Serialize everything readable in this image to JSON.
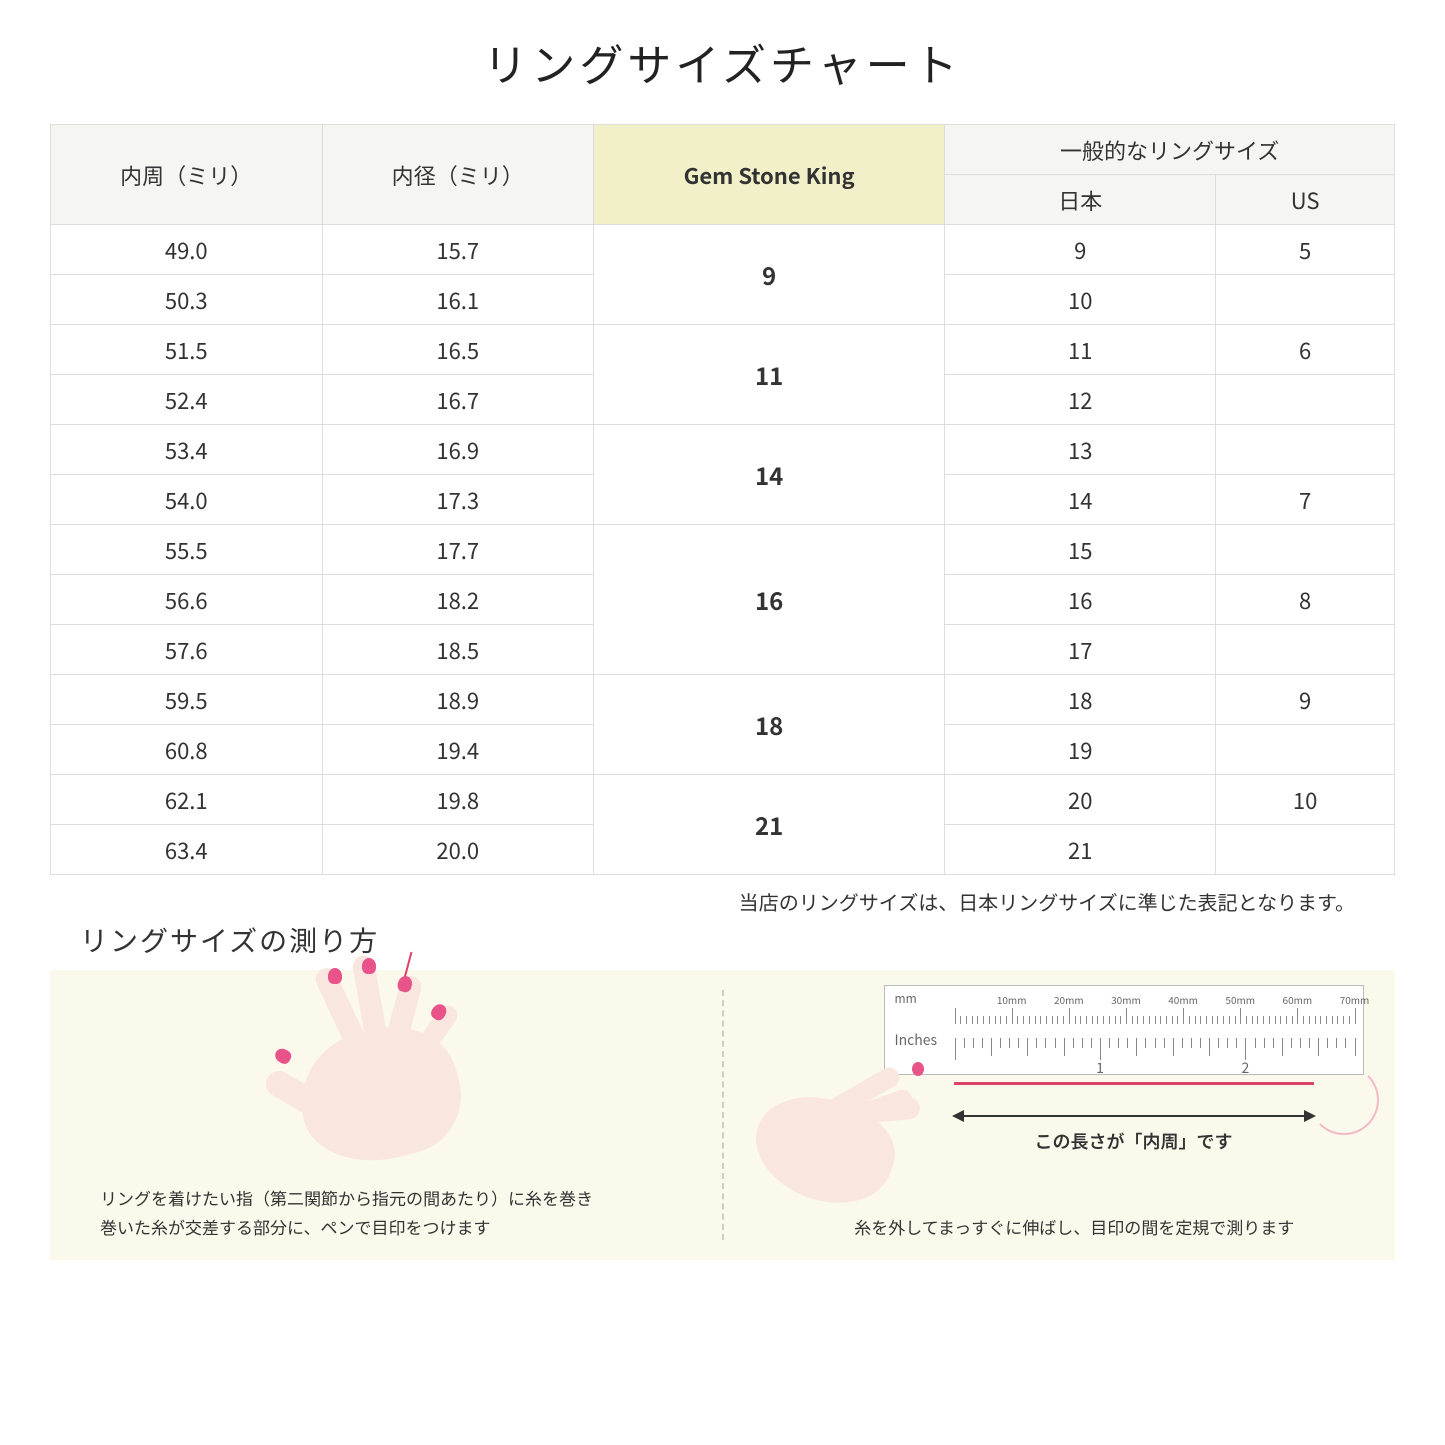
{
  "title": "リングサイズチャート",
  "table": {
    "headers": {
      "circumference": "内周（ミリ）",
      "diameter": "内径（ミリ）",
      "gsk": "Gem Stone King",
      "general": "一般的なリングサイズ",
      "jp": "日本",
      "us": "US"
    },
    "groups": [
      {
        "gsk": "9",
        "rows": [
          {
            "c": "49.0",
            "d": "15.7",
            "jp": "9",
            "us": "5"
          },
          {
            "c": "50.3",
            "d": "16.1",
            "jp": "10",
            "us": ""
          }
        ]
      },
      {
        "gsk": "11",
        "rows": [
          {
            "c": "51.5",
            "d": "16.5",
            "jp": "11",
            "us": "6"
          },
          {
            "c": "52.4",
            "d": "16.7",
            "jp": "12",
            "us": ""
          }
        ]
      },
      {
        "gsk": "14",
        "rows": [
          {
            "c": "53.4",
            "d": "16.9",
            "jp": "13",
            "us": ""
          },
          {
            "c": "54.0",
            "d": "17.3",
            "jp": "14",
            "us": "7"
          }
        ]
      },
      {
        "gsk": "16",
        "rows": [
          {
            "c": "55.5",
            "d": "17.7",
            "jp": "15",
            "us": ""
          },
          {
            "c": "56.6",
            "d": "18.2",
            "jp": "16",
            "us": "8"
          },
          {
            "c": "57.6",
            "d": "18.5",
            "jp": "17",
            "us": ""
          }
        ]
      },
      {
        "gsk": "18",
        "rows": [
          {
            "c": "59.5",
            "d": "18.9",
            "jp": "18",
            "us": "9"
          },
          {
            "c": "60.8",
            "d": "19.4",
            "jp": "19",
            "us": ""
          }
        ]
      },
      {
        "gsk": "21",
        "rows": [
          {
            "c": "62.1",
            "d": "19.8",
            "jp": "20",
            "us": "10"
          },
          {
            "c": "63.4",
            "d": "20.0",
            "jp": "21",
            "us": ""
          }
        ]
      }
    ]
  },
  "note": "当店のリングサイズは、日本リングサイズに準じた表記となります。",
  "howto": {
    "title": "リングサイズの測り方",
    "left_caption": "リングを着けたい指（第二関節から指元の間あたり）に糸を巻き\n巻いた糸が交差する部分に、ペンで目印をつけます",
    "right_caption": "糸を外してまっすぐに伸ばし、目印の間を定規で測ります",
    "arrow_label": "この長さが「内周」です",
    "ruler": {
      "mm_unit": "mm",
      "in_unit": "Inches",
      "mm_ticks": [
        "10mm",
        "20mm",
        "30mm",
        "40mm",
        "50mm",
        "60mm",
        "70mm"
      ],
      "in_ticks": [
        "1",
        "2"
      ]
    }
  },
  "colors": {
    "header_bg": "#f5f5f2",
    "highlight_bg": "#f1f0c9",
    "border": "#dddddd",
    "howto_bg": "#fbf9eb",
    "skin": "#f9e6de",
    "nail": "#e8548a",
    "thread": "#d9436a",
    "thread_light": "#f3b9c8"
  }
}
